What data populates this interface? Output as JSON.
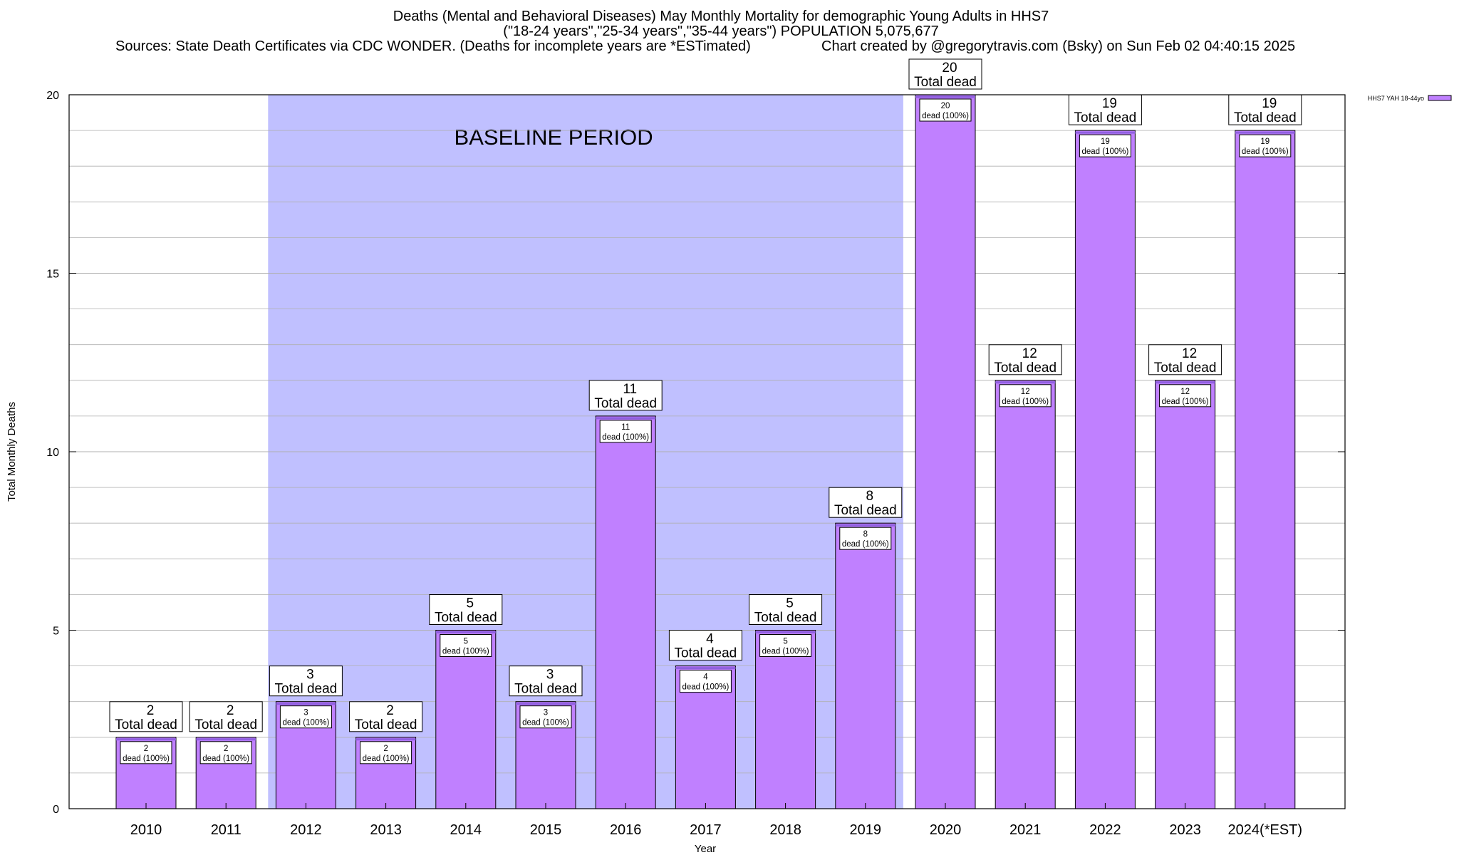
{
  "header": {
    "title_line1": "Deaths (Mental and Behavioral Diseases) May Monthly Mortality for demographic Young Adults in HHS7",
    "title_line2": "(\"18-24 years\",\"25-34 years\",\"35-44 years\") POPULATION 5,075,677",
    "sources": "Sources: State Death Certificates via CDC WONDER. (Deaths for incomplete years are *ESTimated)",
    "credit": "Chart created by @gregorytravis.com (Bsky) on Sun Feb 02 04:40:15 2025"
  },
  "colors": {
    "bar": "#c080ff",
    "bar_top": "#9060e0",
    "baseline_shade": "#c0c0ff",
    "grid": "#b0b0b0"
  },
  "chart_data": {
    "type": "bar",
    "title": "Deaths (Mental and Behavioral Diseases) May Monthly Mortality for demographic Young Adults in HHS7",
    "xlabel": "Year",
    "ylabel": "Total Monthly Deaths",
    "ylim": [
      0,
      20
    ],
    "yticks": [
      0,
      5,
      10,
      15,
      20
    ],
    "categories": [
      "2010",
      "2011",
      "2012",
      "2013",
      "2014",
      "2015",
      "2016",
      "2017",
      "2018",
      "2019",
      "2020",
      "2021",
      "2022",
      "2023",
      "2024(*EST)"
    ],
    "series": [
      {
        "name": "HHS7 YAH 18-44yo",
        "values": [
          2,
          2,
          3,
          2,
          5,
          3,
          11,
          4,
          5,
          8,
          20,
          12,
          19,
          12,
          19
        ]
      }
    ],
    "total_label_suffix": "Total dead",
    "inner_label_suffix": "dead (100%)",
    "baseline_period": {
      "label": "BASELINE PERIOD",
      "from": "2012",
      "to": "2019"
    },
    "grid": true,
    "legend_position": "top-right"
  }
}
